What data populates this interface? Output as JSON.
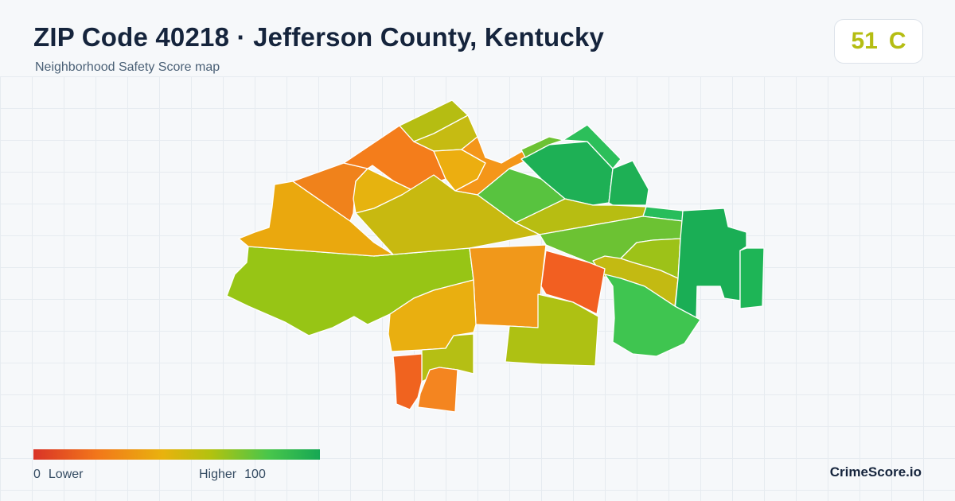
{
  "header": {
    "title": "ZIP Code 40218 · Jefferson County, Kentucky",
    "subtitle": "Neighborhood Safety Score map"
  },
  "score_badge": {
    "score": "51",
    "grade": "C",
    "color": "#b5bd12"
  },
  "legend": {
    "low_value": "0",
    "low_label": "Lower",
    "high_label": "Higher",
    "high_value": "100",
    "colors": [
      "#d93327",
      "#f2761a",
      "#e9b20e",
      "#b2c20f",
      "#49c64b",
      "#16a854"
    ]
  },
  "brand": "CrimeScore.io",
  "map": {
    "region_colors": {
      "west-large": "#97c515",
      "west-upper": "#eaa80e",
      "north-west-orange": "#f0821b",
      "north-center-orange": "#f47d1b",
      "north-small-gold": "#e6b30f",
      "north-top-olive": "#b5bd12",
      "north-top-olive-2": "#c6bb12",
      "north-gold-2": "#ecae10",
      "north-orange-2": "#f49619",
      "central-olive": "#c8b910",
      "central-green": "#58c33f",
      "east-dark-green-1": "#1eb055",
      "east-green-top": "#2cbf5a",
      "east-olive-band": "#b7bd12",
      "east-green-strip": "#27bd5b",
      "east-lime-band": "#6cc233",
      "east-lime-2": "#9dc218",
      "east-olive-3": "#c3ba12",
      "far-east-green": "#1aae55",
      "far-east-green-2": "#1eb556",
      "south-center-orange": "#f1981a",
      "south-red-orange": "#f25f21",
      "south-olive": "#aec113",
      "south-green": "#3fc550",
      "south-west-gold": "#e9af10",
      "south-west-olive": "#b5bf14",
      "south-red": "#f0631f",
      "south-orange": "#f48520"
    }
  }
}
